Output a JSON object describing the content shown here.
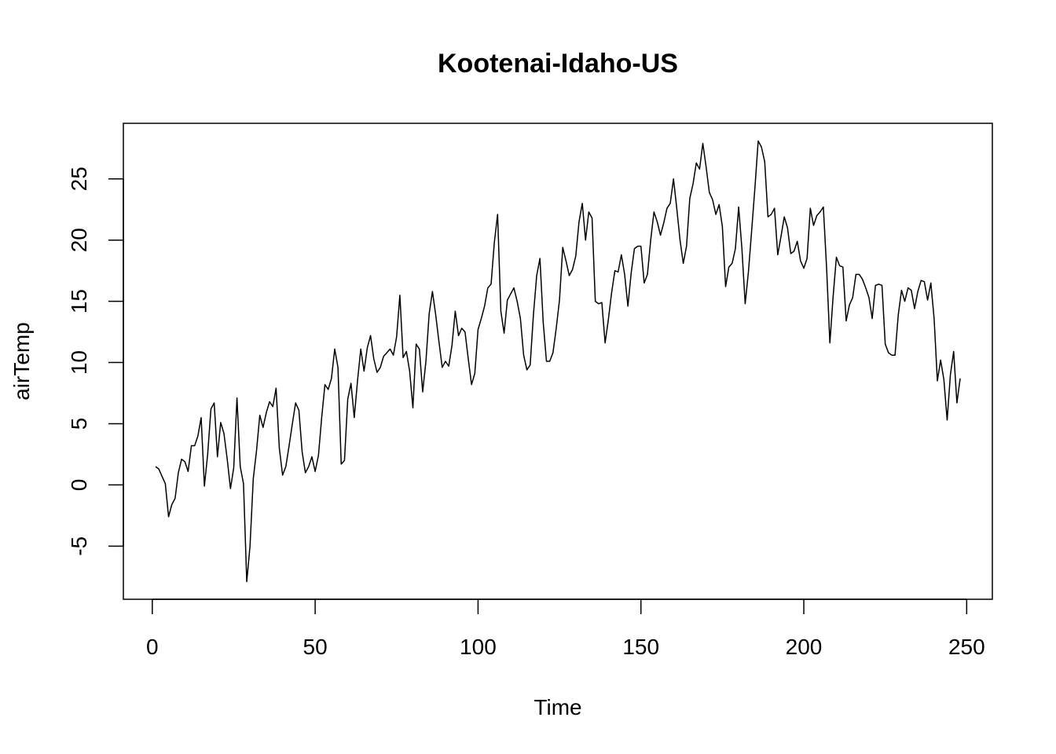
{
  "chart_data": {
    "type": "line",
    "title": "Kootenai-Idaho-US",
    "xlabel": "Time",
    "ylabel": "airTemp",
    "x": [
      1,
      2,
      3,
      4,
      5,
      6,
      7,
      8,
      9,
      10,
      11,
      12,
      13,
      14,
      15,
      16,
      17,
      18,
      19,
      20,
      21,
      22,
      23,
      24,
      25,
      26,
      27,
      28,
      29,
      30,
      31,
      32,
      33,
      34,
      35,
      36,
      37,
      38,
      39,
      40,
      41,
      42,
      43,
      44,
      45,
      46,
      47,
      48,
      49,
      50,
      51,
      52,
      53,
      54,
      55,
      56,
      57,
      58,
      59,
      60,
      61,
      62,
      63,
      64,
      65,
      66,
      67,
      68,
      69,
      70,
      71,
      72,
      73,
      74,
      75,
      76,
      77,
      78,
      79,
      80,
      81,
      82,
      83,
      84,
      85,
      86,
      87,
      88,
      89,
      90,
      91,
      92,
      93,
      94,
      95,
      96,
      97,
      98,
      99,
      100,
      101,
      102,
      103,
      104,
      105,
      106,
      107,
      108,
      109,
      110,
      111,
      112,
      113,
      114,
      115,
      116,
      117,
      118,
      119,
      120,
      121,
      122,
      123,
      124,
      125,
      126,
      127,
      128,
      129,
      130,
      131,
      132,
      133,
      134,
      135,
      136,
      137,
      138,
      139,
      140,
      141,
      142,
      143,
      144,
      145,
      146,
      147,
      148,
      149,
      150,
      151,
      152,
      153,
      154,
      155,
      156,
      157,
      158,
      159,
      160,
      161,
      162,
      163,
      164,
      165,
      166,
      167,
      168,
      169,
      170,
      171,
      172,
      173,
      174,
      175,
      176,
      177,
      178,
      179,
      180,
      181,
      182,
      183,
      184,
      185,
      186,
      187,
      188,
      189,
      190,
      191,
      192,
      193,
      194,
      195,
      196,
      197,
      198,
      199,
      200,
      201,
      202,
      203,
      204,
      205,
      206,
      207,
      208,
      209,
      210,
      211,
      212,
      213,
      214,
      215,
      216,
      217,
      218,
      219,
      220,
      221,
      222,
      223,
      224,
      225,
      226,
      227,
      228,
      229,
      230,
      231,
      232,
      233,
      234,
      235,
      236,
      237,
      238,
      239,
      240,
      241,
      242,
      243,
      244,
      245,
      246,
      247,
      248
    ],
    "series": [
      {
        "color": "#000000",
        "values": [
          1.5,
          1.3,
          0.7,
          0.1,
          -2.6,
          -1.6,
          -1.1,
          1.0,
          2.1,
          1.9,
          1.1,
          3.2,
          3.2,
          4.0,
          5.5,
          -0.1,
          2.5,
          6.2,
          6.7,
          2.3,
          5.1,
          4.2,
          2.1,
          -0.3,
          1.4,
          7.1,
          1.5,
          0.1,
          -7.9,
          -5.0,
          0.5,
          2.8,
          5.7,
          4.7,
          5.9,
          6.8,
          6.4,
          7.9,
          3.0,
          0.8,
          1.5,
          3.2,
          5.0,
          6.7,
          6.1,
          2.7,
          1.0,
          1.5,
          2.3,
          1.1,
          2.4,
          5.5,
          8.2,
          7.8,
          8.7,
          11.1,
          9.6,
          1.7,
          2.0,
          7.0,
          8.3,
          5.5,
          8.5,
          11.1,
          9.3,
          11.2,
          12.2,
          10.3,
          9.2,
          9.6,
          10.5,
          10.8,
          11.1,
          10.6,
          12.1,
          15.5,
          10.4,
          10.9,
          9.3,
          6.3,
          11.5,
          11.1,
          7.6,
          10.1,
          14.0,
          15.8,
          13.9,
          11.7,
          9.6,
          10.1,
          9.7,
          11.4,
          14.2,
          12.2,
          12.8,
          12.5,
          10.3,
          8.2,
          9.1,
          12.7,
          13.6,
          14.6,
          16.1,
          16.4,
          19.8,
          22.1,
          14.2,
          12.4,
          15.1,
          15.6,
          16.1,
          15.0,
          13.6,
          10.6,
          9.4,
          9.8,
          13.9,
          17.1,
          18.5,
          13.3,
          10.1,
          10.1,
          10.8,
          12.8,
          15.1,
          19.4,
          18.3,
          17.1,
          17.6,
          18.7,
          21.5,
          23.0,
          20.0,
          22.3,
          21.8,
          15.0,
          14.8,
          14.9,
          11.6,
          13.5,
          15.7,
          17.5,
          17.4,
          18.8,
          17.2,
          14.6,
          17.3,
          19.3,
          19.5,
          19.5,
          16.5,
          17.2,
          20.0,
          22.3,
          21.5,
          20.4,
          21.4,
          22.6,
          23.0,
          25.0,
          22.6,
          20.0,
          18.1,
          19.5,
          23.4,
          24.6,
          26.3,
          25.8,
          27.9,
          26.0,
          23.9,
          23.3,
          22.1,
          22.9,
          21.1,
          16.2,
          17.8,
          18.1,
          19.3,
          22.7,
          19.3,
          14.8,
          17.4,
          20.8,
          24.3,
          28.1,
          27.6,
          26.4,
          21.9,
          22.1,
          22.6,
          18.8,
          20.3,
          21.9,
          21.0,
          18.9,
          19.1,
          19.9,
          18.3,
          17.7,
          18.5,
          22.6,
          21.2,
          22.0,
          22.3,
          22.7,
          17.7,
          11.6,
          15.4,
          18.6,
          17.9,
          17.8,
          13.4,
          14.7,
          15.3,
          17.2,
          17.2,
          16.8,
          16.1,
          15.3,
          13.6,
          16.3,
          16.4,
          16.3,
          11.5,
          10.8,
          10.6,
          10.6,
          13.9,
          15.9,
          15.0,
          16.1,
          15.9,
          14.4,
          15.8,
          16.7,
          16.6,
          15.1,
          16.5,
          13.6,
          8.5,
          10.2,
          8.6,
          5.3,
          9.0,
          10.9,
          6.7,
          8.7
        ]
      }
    ],
    "xlim": [
      -8.88,
      257.88
    ],
    "xticks": [
      0,
      50,
      100,
      150,
      200,
      250
    ],
    "ylim": [
      -9.34,
      29.54
    ],
    "yticks": [
      -5,
      0,
      5,
      10,
      15,
      20,
      25
    ]
  }
}
